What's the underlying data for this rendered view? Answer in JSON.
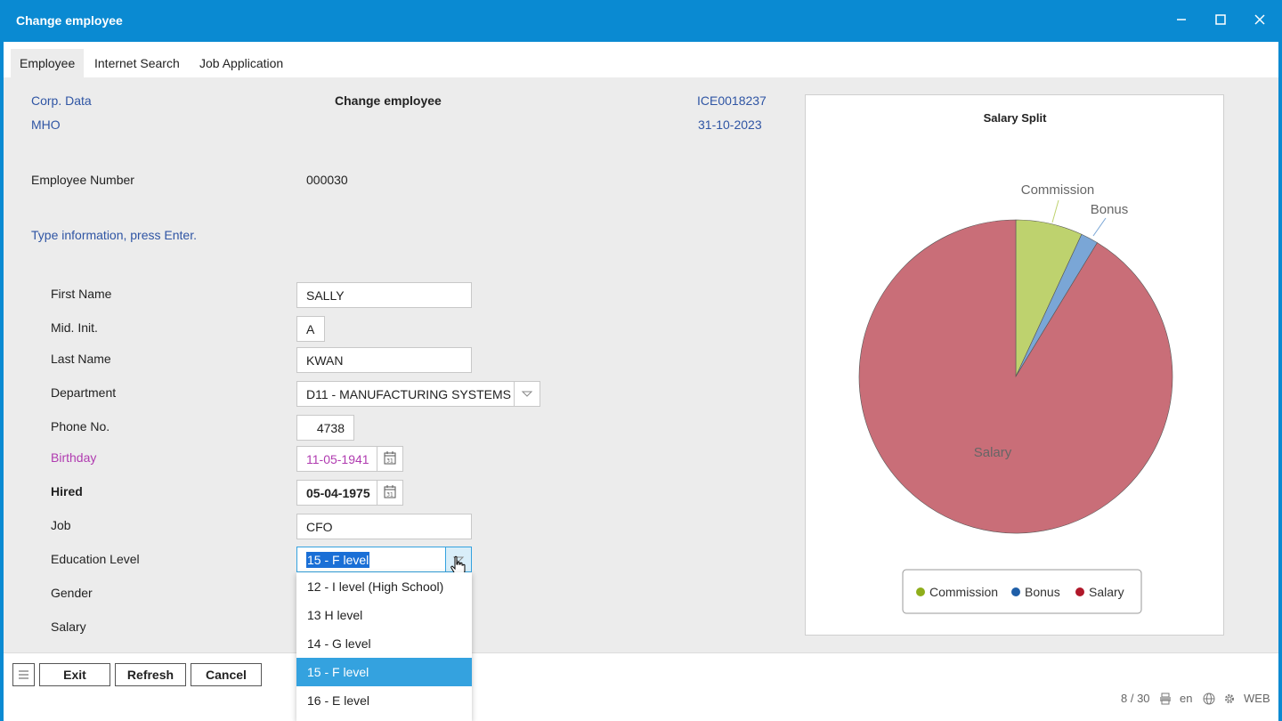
{
  "window": {
    "title": "Change employee",
    "minimize": "─",
    "maximize": "☐",
    "close": "✕"
  },
  "tabs": [
    {
      "label": "Employee"
    },
    {
      "label": "Internet Search"
    },
    {
      "label": "Job Application"
    }
  ],
  "header": {
    "corp_data": "Corp. Data",
    "page_title": "Change employee",
    "code": "ICE0018237",
    "user": "MHO",
    "date": "31-10-2023"
  },
  "employee_number": {
    "label": "Employee Number",
    "value": "000030"
  },
  "instruction": "Type information, press Enter.",
  "form": {
    "first_name": {
      "label": "First Name",
      "value": "SALLY"
    },
    "mid_init": {
      "label": "Mid. Init.",
      "value": "A"
    },
    "last_name": {
      "label": "Last Name",
      "value": "KWAN"
    },
    "department": {
      "label": "Department",
      "value": "D11 - MANUFACTURING SYSTEMS"
    },
    "phone": {
      "label": "Phone No.",
      "value": "4738"
    },
    "birthday": {
      "label": "Birthday",
      "value": "11-05-1941"
    },
    "hired": {
      "label": "Hired",
      "value": "05-04-1975"
    },
    "job": {
      "label": "Job",
      "value": "CFO"
    },
    "education": {
      "label": "Education Level",
      "value": "15 - F level",
      "options": [
        "12 - I level (High School)",
        "13 H level",
        "14 - G level",
        "15 - F level",
        "16 - E level"
      ],
      "selected_index": 3
    },
    "gender": {
      "label": "Gender"
    },
    "salary": {
      "label": "Salary"
    }
  },
  "chart_data": {
    "type": "pie",
    "title": "Salary Split",
    "slices": [
      {
        "label": "Commission",
        "value": 6.9,
        "color": "#bed26e"
      },
      {
        "label": "Bonus",
        "value": 1.8,
        "color": "#7aa6d6"
      },
      {
        "label": "Salary",
        "value": 91.3,
        "color": "#c96e78"
      }
    ],
    "legend": [
      {
        "label": "Commission",
        "color": "#8fae1b"
      },
      {
        "label": "Bonus",
        "color": "#1f5fa8"
      },
      {
        "label": "Salary",
        "color": "#b0182a"
      }
    ],
    "legend_position": "bottom"
  },
  "buttons": {
    "exit": "Exit",
    "refresh": "Refresh",
    "cancel": "Cancel"
  },
  "status": {
    "page": "8 / 30",
    "lang": "en",
    "mode": "WEB"
  },
  "colors": {
    "titlebar": "#0a8ad2",
    "link": "#2f55a4",
    "birthday": "#b03bb0",
    "selected": "#34a2df"
  }
}
